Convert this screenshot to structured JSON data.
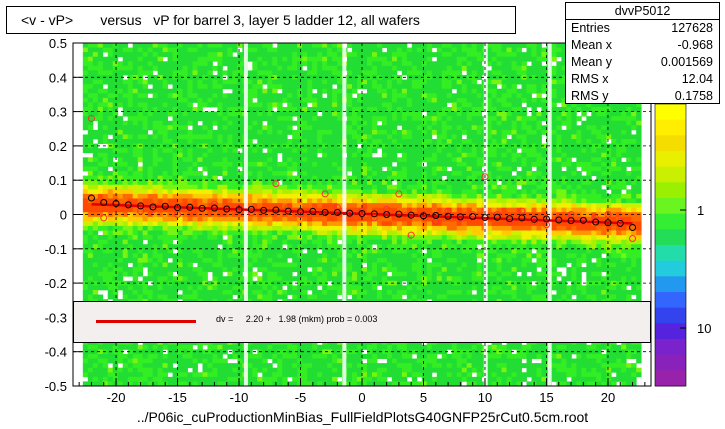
{
  "title": "<v - vP>       versus   vP for barrel 3, layer 5 ladder 12, all wafers",
  "stats": {
    "name": "dvvP5012",
    "rows": [
      {
        "label": "Entries",
        "value": "127628"
      },
      {
        "label": "Mean x",
        "value": "-0.968"
      },
      {
        "label": "Mean y",
        "value": "0.001569"
      },
      {
        "label": "RMS x",
        "value": "12.04"
      },
      {
        "label": "RMS y",
        "value": "0.1758"
      }
    ]
  },
  "fit": {
    "text": "dv =     2.20 +   1.98 (mkm) prob = 0.003"
  },
  "chart_data": {
    "type": "scatter",
    "title": "<v - vP>       versus   vP for barrel 3, layer 5 ladder 12, all wafers",
    "xlabel": "../P06ic_cuProductionMinBias_FullFieldPlotsG40GNFP25rCut0.5cm.root",
    "ylabel": "",
    "xlim": [
      -23.5,
      23.5
    ],
    "ylim": [
      -0.5,
      0.5
    ],
    "x_ticks": [
      -20,
      -15,
      -10,
      -5,
      0,
      5,
      10,
      15,
      20
    ],
    "x_tick_labels": [
      "-20",
      "-15",
      "-10",
      "-5",
      "0",
      "5",
      "10",
      "15",
      "20"
    ],
    "y_ticks": [
      -0.5,
      -0.4,
      -0.3,
      -0.2,
      -0.1,
      0,
      0.1,
      0.2,
      0.3,
      0.4,
      0.5
    ],
    "y_tick_labels": [
      "-0.5",
      "-0.4",
      "-0.3",
      "-0.2",
      "-0.1",
      "0",
      "0.1",
      "0.2",
      "0.3",
      "0.4",
      "0.5"
    ],
    "grid": true,
    "colorbar_labels": [
      "1",
      "10"
    ],
    "colorbar_ticks": [
      1,
      10
    ],
    "series": [
      {
        "marker": "open-circle-black",
        "x": [
          -22,
          -21,
          -20,
          -19,
          -18,
          -17,
          -16,
          -15,
          -14,
          -13,
          -12,
          -11,
          -10,
          -9,
          -8,
          -7,
          -6,
          -5,
          -4,
          -3,
          -2,
          -1,
          0,
          1,
          2,
          3,
          4,
          5,
          6,
          7,
          8,
          9,
          10,
          11,
          12,
          13,
          14,
          15,
          16,
          17,
          18,
          19,
          20,
          21,
          22
        ],
        "y": [
          0.048,
          0.035,
          0.032,
          0.028,
          0.025,
          0.022,
          0.024,
          0.02,
          0.021,
          0.018,
          0.019,
          0.016,
          0.014,
          0.015,
          0.012,
          0.013,
          0.01,
          0.008,
          0.009,
          0.006,
          0.006,
          0.004,
          0.003,
          0.002,
          0.0,
          0.001,
          -0.002,
          -0.004,
          -0.003,
          -0.005,
          -0.007,
          -0.006,
          -0.009,
          -0.008,
          -0.012,
          -0.01,
          -0.014,
          -0.013,
          -0.016,
          -0.018,
          -0.017,
          -0.022,
          -0.024,
          -0.026,
          -0.038
        ]
      },
      {
        "marker": "open-circle-red",
        "x": [
          -22,
          -21,
          -18,
          -17,
          -15,
          -12,
          -10,
          -9,
          -7,
          -6,
          -5,
          -4,
          -3,
          -2,
          -1,
          0,
          1,
          2,
          3,
          4,
          5,
          6,
          7,
          8,
          9,
          10,
          11,
          12,
          13,
          14,
          15,
          16,
          17,
          18,
          19,
          20,
          21,
          22
        ],
        "y": [
          0.28,
          -0.01,
          0.01,
          0.015,
          0.0,
          0.03,
          0.02,
          0.005,
          0.09,
          0.02,
          0.0,
          0.01,
          0.06,
          0.02,
          0.0,
          0.01,
          -0.01,
          0.015,
          0.06,
          -0.06,
          0.0,
          -0.02,
          0.01,
          -0.01,
          0.0,
          0.11,
          0.0,
          -0.02,
          0.01,
          -0.02,
          -0.03,
          -0.01,
          0.0,
          -0.02,
          -0.01,
          0.0,
          -0.02,
          -0.07
        ]
      }
    ],
    "fit_line": {
      "x": [
        -22,
        22
      ],
      "y": [
        0.03,
        -0.026
      ],
      "color": "#e00000"
    }
  }
}
